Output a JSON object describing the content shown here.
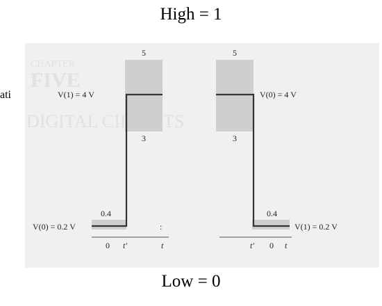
{
  "headings": {
    "top": "High = 1",
    "bottom": "Low = 0"
  },
  "cut_text": "ati",
  "background_text": {
    "chapter": "CHAPTER",
    "number": "FIVE",
    "title": "DIGITAL CIRCUITS"
  },
  "left_waveform": {
    "high_label": "V(1) = 4 V",
    "low_label": "V(0) = 0.2 V",
    "band_top_label": "5",
    "band_bottom_label": "3",
    "low_band_label": "0.4",
    "t_zero": "0",
    "t_switch": "t'",
    "t_axis": "t",
    "small_mark": ":"
  },
  "right_waveform": {
    "high_label": "V(0) = 4 V",
    "low_label": "V(1) = 0.2 V",
    "band_top_label": "5",
    "band_bottom_label": "3",
    "low_band_label": "0.4",
    "t_zero": "0",
    "t_switch": "t'",
    "t_axis": "t"
  },
  "colors": {
    "band": "#cfcfcf",
    "line": "#333333",
    "panel": "#f0f0f0"
  }
}
